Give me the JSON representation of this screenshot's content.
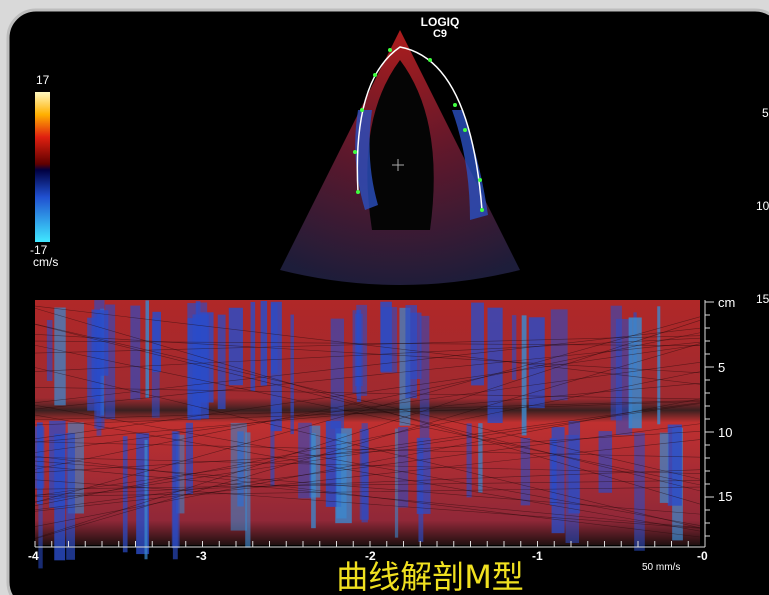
{
  "header": {
    "brand": "LOGIQ",
    "probe": "C9"
  },
  "color_scale": {
    "max": "17",
    "min": "-17",
    "unit": "cm/s"
  },
  "sector_depth_labels": [
    "5",
    "10",
    "15"
  ],
  "mmode": {
    "depth_unit": "cm",
    "depth_labels": [
      "5",
      "10",
      "15"
    ],
    "time_labels": [
      "-4",
      "-3",
      "-2",
      "-1",
      "-0"
    ],
    "sweep_speed": "50 mm/s"
  },
  "caption": "曲线解剖M型"
}
